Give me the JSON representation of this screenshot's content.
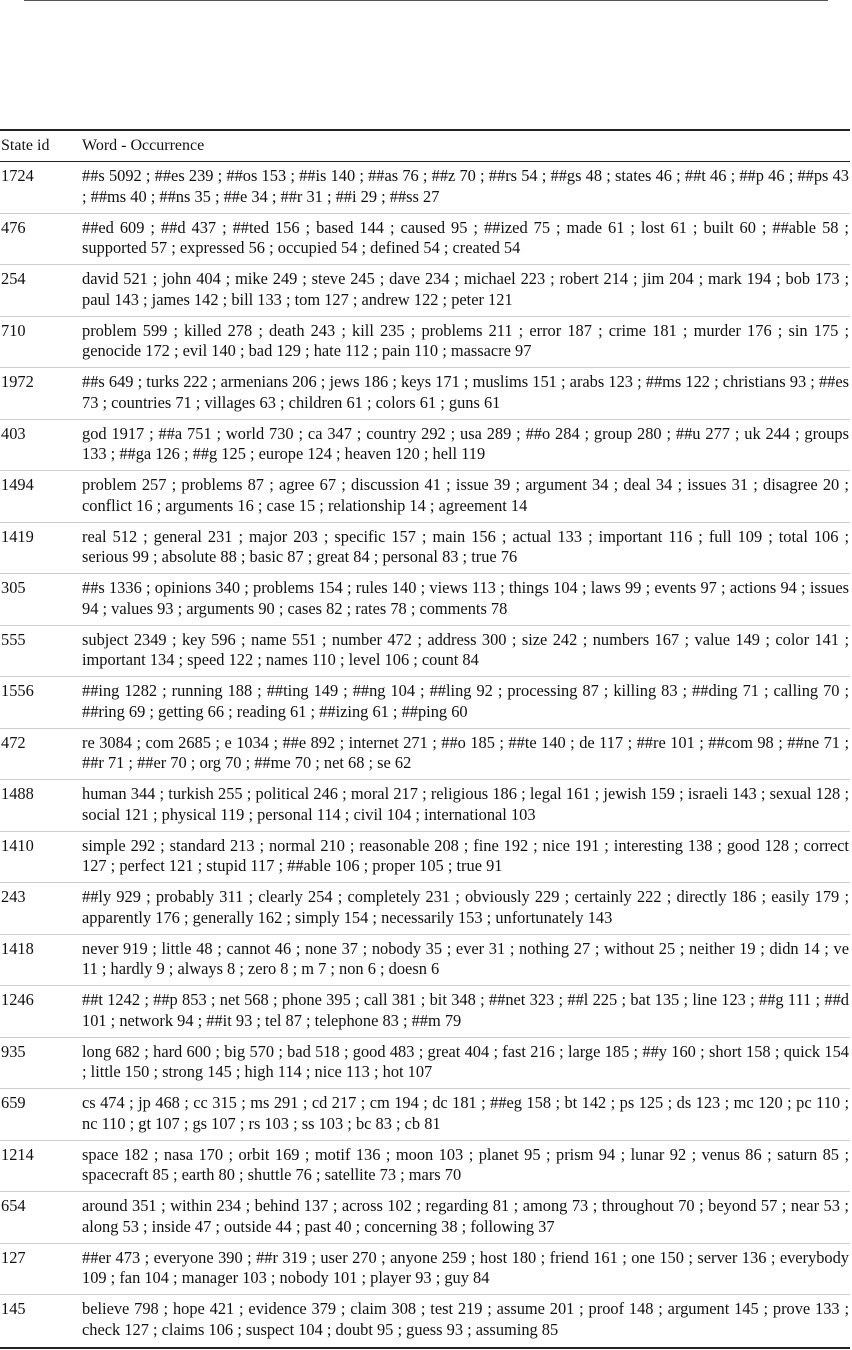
{
  "table": {
    "headers": {
      "state_id": "State id",
      "words": "Word - Occurrence"
    },
    "rows": [
      {
        "id": "1724",
        "words": "##s 5092 ; ##es 239 ; ##os 153 ; ##is 140 ; ##as 76 ; ##z 70 ; ##rs 54 ; ##gs 48 ; states 46 ; ##t 46 ; ##p 46 ; ##ps 43 ; ##ms 40 ; ##ns 35 ; ##e 34 ; ##r 31 ; ##i 29 ; ##ss 27"
      },
      {
        "id": "476",
        "words": "##ed 609 ; ##d 437 ; ##ted 156 ; based 144 ; caused 95 ; ##ized 75 ; made 61 ; lost 61 ; built 60 ; ##able 58 ; supported 57 ; expressed 56 ; occupied 54 ; defined 54 ; created 54"
      },
      {
        "id": "254",
        "words": "david 521 ; john 404 ; mike 249 ; steve 245 ; dave 234 ; michael 223 ; robert 214 ; jim 204 ; mark 194 ; bob 173 ; paul 143 ; james 142 ; bill 133 ; tom 127 ; andrew 122 ; peter 121"
      },
      {
        "id": "710",
        "words": "problem 599 ; killed 278 ; death 243 ; kill 235 ; problems 211 ; error 187 ; crime 181 ; murder 176 ; sin 175 ; genocide 172 ; evil 140 ; bad 129 ; hate 112 ; pain 110 ; massacre 97"
      },
      {
        "id": "1972",
        "words": "##s 649 ; turks 222 ; armenians 206 ; jews 186 ; keys 171 ; muslims 151 ; arabs 123 ; ##ms 122 ; christians 93 ; ##es 73 ; countries 71 ; villages 63 ; children 61 ; colors 61 ; guns 61"
      },
      {
        "id": "403",
        "words": "god 1917 ; ##a 751 ; world 730 ; ca 347 ; country 292 ; usa 289 ; ##o 284 ; group 280 ; ##u 277 ; uk 244 ; groups 133 ; ##ga 126 ; ##g 125 ; europe 124 ; heaven 120 ; hell 119"
      },
      {
        "id": "1494",
        "words": "problem 257 ; problems 87 ; agree 67 ; discussion 41 ; issue 39 ; argument 34 ; deal 34 ; issues 31 ; disagree 20 ; conflict 16 ; arguments 16 ; case 15 ; relationship 14 ; agreement 14"
      },
      {
        "id": "1419",
        "words": "real 512 ; general 231 ; major 203 ; specific 157 ; main 156 ; actual 133 ; important 116 ; full 109 ; total 106 ; serious 99 ; absolute 88 ; basic 87 ; great 84 ; personal 83 ; true 76"
      },
      {
        "id": "305",
        "words": "##s 1336 ; opinions 340 ; problems 154 ; rules 140 ; views 113 ; things 104 ; laws 99 ; events 97 ; actions 94 ; issues 94 ; values 93 ; arguments 90 ; cases 82 ; rates 78 ; comments 78"
      },
      {
        "id": "555",
        "words": "subject 2349 ; key 596 ; name 551 ; number 472 ; address 300 ; size 242 ; numbers 167 ; value 149 ; color 141 ; important 134 ; speed 122 ; names 110 ; level 106 ; count 84"
      },
      {
        "id": "1556",
        "words": "##ing 1282 ; running 188 ; ##ting 149 ; ##ng 104 ; ##ling 92 ; processing 87 ; killing 83 ; ##ding 71 ; calling 70 ; ##ring 69 ; getting 66 ; reading 61 ; ##izing 61 ; ##ping 60"
      },
      {
        "id": "472",
        "words": "re 3084 ; com 2685 ; e 1034 ; ##e 892 ; internet 271 ; ##o 185 ; ##te 140 ; de 117 ; ##re 101 ; ##com 98 ; ##ne 71 ; ##r 71 ; ##er 70 ; org 70 ; ##me 70 ; net 68 ; se 62"
      },
      {
        "id": "1488",
        "words": "human 344 ; turkish 255 ; political 246 ; moral 217 ; religious 186 ; legal 161 ; jewish 159 ; israeli 143 ; sexual 128 ; social 121 ; physical 119 ; personal 114 ; civil 104 ; international 103"
      },
      {
        "id": "1410",
        "words": "simple 292 ; standard 213 ; normal 210 ; reasonable 208 ; fine 192 ; nice 191 ; interesting 138 ; good 128 ; correct 127 ; perfect 121 ; stupid 117 ; ##able 106 ; proper 105 ; true 91"
      },
      {
        "id": "243",
        "words": "##ly 929 ; probably 311 ; clearly 254 ; completely 231 ; obviously 229 ; certainly 222 ; directly 186 ; easily 179 ; apparently 176 ; generally 162 ; simply 154 ; necessarily 153 ; unfortunately 143"
      },
      {
        "id": "1418",
        "words": "never 919 ; little 48 ; cannot 46 ; none 37 ; nobody 35 ; ever 31 ; nothing 27 ; without 25 ; neither 19 ; didn 14 ; ve 11 ; hardly 9 ; always 8 ; zero 8 ; m 7 ; non 6 ; doesn 6"
      },
      {
        "id": "1246",
        "words": "##t 1242 ; ##p 853 ; net 568 ; phone 395 ; call 381 ; bit 348 ; ##net 323 ; ##l 225 ; bat 135 ; line 123 ; ##g 111 ; ##d 101 ; network 94 ; ##it 93 ; tel 87 ; telephone 83 ; ##m 79"
      },
      {
        "id": "935",
        "words": "long 682 ; hard 600 ; big 570 ; bad 518 ; good 483 ; great 404 ; fast 216 ; large 185 ; ##y 160 ; short 158 ; quick 154 ; little 150 ; strong 145 ; high 114 ; nice 113 ; hot 107"
      },
      {
        "id": "659",
        "words": "cs 474 ; jp 468 ; cc 315 ; ms 291 ; cd 217 ; cm 194 ; dc 181 ; ##eg 158 ; bt 142 ; ps 125 ; ds 123 ; mc 120 ; pc 110 ; nc 110 ; gt 107 ; gs 107 ; rs 103 ; ss 103 ; bc 83 ; cb 81"
      },
      {
        "id": "1214",
        "words": "space 182 ; nasa 170 ; orbit 169 ; motif 136 ; moon 103 ; planet 95 ; prism 94 ; lunar 92 ; venus 86 ; saturn 85 ; spacecraft 85 ; earth 80 ; shuttle 76 ; satellite 73 ; mars 70"
      },
      {
        "id": "654",
        "words": "around 351 ; within 234 ; behind 137 ; across 102 ; regarding 81 ; among 73 ; throughout 70 ; beyond 57 ; near 53 ; along 53 ; inside 47 ; outside 44 ; past 40 ; concerning 38 ; following 37"
      },
      {
        "id": "127",
        "words": "##er 473 ; everyone 390 ; ##r 319 ; user 270 ; anyone 259 ; host 180 ; friend 161 ; one 150 ; server 136 ; everybody 109 ; fan 104 ; manager 103 ; nobody 101 ; player 93 ; guy 84"
      },
      {
        "id": "145",
        "words": "believe 798 ; hope 421 ; evidence 379 ; claim 308 ; test 219 ; assume 201 ; proof 148 ; argument 145 ; prove 133 ; check 127 ; claims 106 ; suspect 104 ; doubt 95 ; guess 93 ; assuming 85"
      }
    ]
  }
}
